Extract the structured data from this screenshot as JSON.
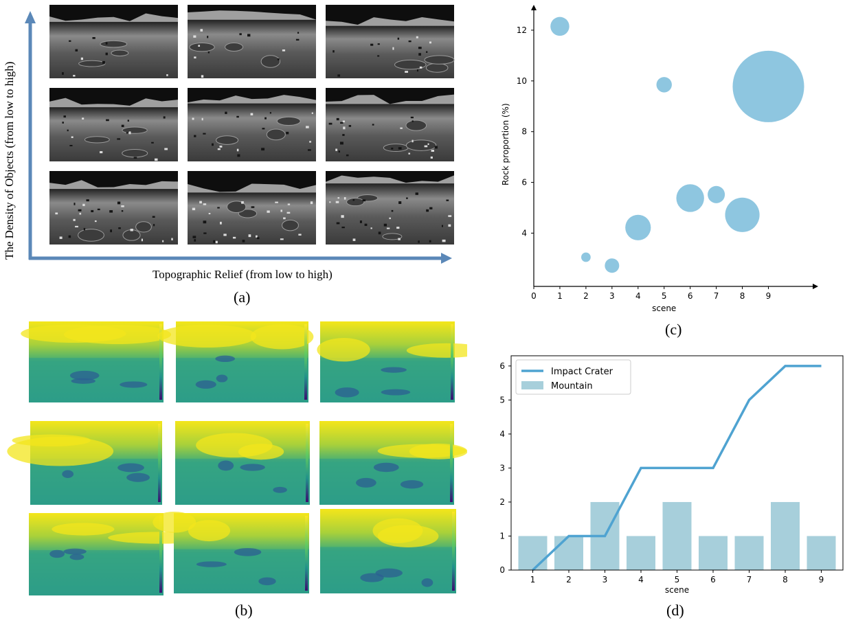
{
  "panel_a": {
    "label": "(a)",
    "x_axis_label": "Topographic Relief (from low to high)",
    "y_axis_label": "The Density of Objects (from low to high)",
    "arrow_color": "#5b88b8"
  },
  "panel_b": {
    "label": "(b)"
  },
  "panel_c": {
    "label": "(c)"
  },
  "panel_d": {
    "label": "(d)"
  },
  "chart_data": [
    {
      "type": "scatter",
      "xlabel": "scene",
      "ylabel": "Rock proportion (%)",
      "xlim": [
        0,
        10.7
      ],
      "ylim": [
        1.9,
        13.0
      ],
      "x_ticks": [
        "0",
        "1",
        "2",
        "3",
        "4",
        "5",
        "6",
        "7",
        "8",
        "9"
      ],
      "y_ticks": [
        "4",
        "6",
        "8",
        "10",
        "12"
      ],
      "grid": false,
      "color": "#8ec6e0",
      "points": [
        {
          "x": 1,
          "y": 12.15,
          "size": 0.6
        },
        {
          "x": 2,
          "y": 3.05,
          "size": 0.15
        },
        {
          "x": 3,
          "y": 2.72,
          "size": 0.35
        },
        {
          "x": 4,
          "y": 4.22,
          "size": 1.1
        },
        {
          "x": 5,
          "y": 9.85,
          "size": 0.4
        },
        {
          "x": 6,
          "y": 5.38,
          "size": 1.3
        },
        {
          "x": 7,
          "y": 5.52,
          "size": 0.5
        },
        {
          "x": 8,
          "y": 4.72,
          "size": 2.0
        },
        {
          "x": 9,
          "y": 9.78,
          "size": 8.6
        }
      ]
    },
    {
      "type": "bar",
      "xlabel": "scene",
      "ylabel": "",
      "categories": [
        "1",
        "2",
        "3",
        "4",
        "5",
        "6",
        "7",
        "8",
        "9"
      ],
      "ylim": [
        0,
        6.3
      ],
      "y_ticks": [
        "0",
        "1",
        "2",
        "3",
        "4",
        "5",
        "6"
      ],
      "legend_position": "top-left",
      "series": [
        {
          "name": "Impact Crater",
          "kind": "line",
          "color": "#4fa3d1",
          "values": [
            0,
            1,
            1,
            3,
            3,
            3,
            5,
            6,
            6
          ]
        },
        {
          "name": "Mountain",
          "kind": "bar",
          "color": "#a7cfdb",
          "values": [
            1,
            1,
            2,
            1,
            2,
            1,
            1,
            2,
            1
          ]
        }
      ]
    }
  ]
}
